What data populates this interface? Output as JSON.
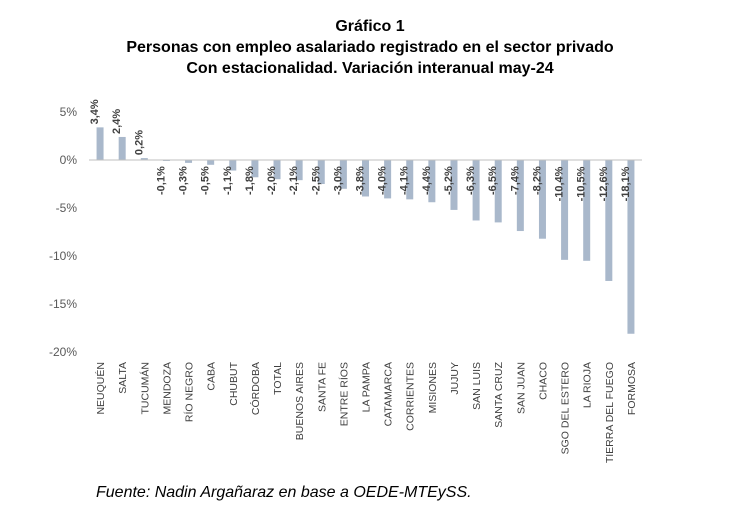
{
  "header": {
    "title": "Gráfico 1",
    "subtitle_1": "Personas con empleo asalariado registrado en el sector privado",
    "subtitle_2": "Con estacionalidad. Variación interanual may-24"
  },
  "source": "Fuente: Nadin Argañaraz en base a OEDE-MTEySS.",
  "chart_data": {
    "type": "bar",
    "categories": [
      "NEUQUÉN",
      "SALTA",
      "TUCUMÁN",
      "MENDOZA",
      "RÍO NEGRO",
      "CABA",
      "CHUBUT",
      "CÓRDOBA",
      "TOTAL",
      "BUENOS AIRES",
      "SANTA FE",
      "ENTRE RÍOS",
      "LA PAMPA",
      "CATAMARCA",
      "CORRIENTES",
      "MISIONES",
      "JUJUY",
      "SAN LUIS",
      "SANTA CRUZ",
      "SAN JUAN",
      "CHACO",
      "SGO DEL ESTERO",
      "LA RIOJA",
      "TIERRA DEL FUEGO",
      "FORMOSA"
    ],
    "values": [
      3.4,
      2.4,
      0.2,
      -0.1,
      -0.3,
      -0.5,
      -1.1,
      -1.8,
      -2.0,
      -2.1,
      -2.5,
      -3.0,
      -3.8,
      -4.0,
      -4.1,
      -4.4,
      -5.2,
      -6.3,
      -6.5,
      -7.4,
      -8.2,
      -10.4,
      -10.5,
      -12.6,
      -18.1
    ],
    "labels": [
      "3,4%",
      "2,4%",
      "0,2%",
      "-0,1%",
      "-0,3%",
      "-0,5%",
      "-1,1%",
      "-1,8%",
      "-2,0%",
      "-2,1%",
      "-2,5%",
      "-3,0%",
      "-3,8%",
      "-4,0%",
      "-4,1%",
      "-4,4%",
      "-5,2%",
      "-6,3%",
      "-6,5%",
      "-7,4%",
      "-8,2%",
      "-10,4%",
      "-10,5%",
      "-12,6%",
      "-18,1%"
    ],
    "yticks": [
      5,
      0,
      -5,
      -10,
      -15,
      -20
    ],
    "ytick_labels": [
      "5%",
      "0%",
      "-5%",
      "-10%",
      "-15%",
      "-20%"
    ],
    "ylim": [
      -20,
      5
    ],
    "bar_color": "#a9b8cb",
    "axis_color": "#bfbfbf",
    "grid": false,
    "legend": false
  }
}
